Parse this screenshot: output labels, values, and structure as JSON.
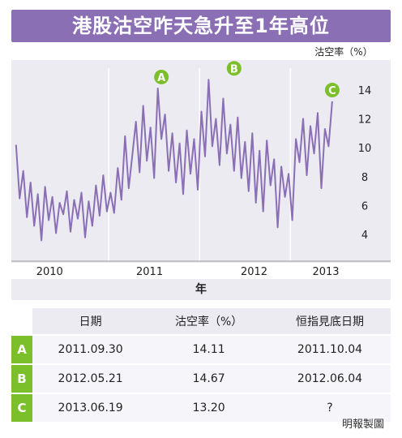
{
  "title": "港股沽空咋天急升至1年高位",
  "colors": {
    "accent": "#8a6fb5",
    "line": "#8a6fb5",
    "marker": "#7bbf2a",
    "panel": "#ecebf2"
  },
  "chart_data": {
    "type": "line",
    "title": "港股沽空咋天急升至1年高位",
    "ylabel": "沽空率（%）",
    "xlabel": "年",
    "xlim": [
      2010.0,
      2013.55
    ],
    "ylim": [
      2.5,
      15.5
    ],
    "yticks": [
      4,
      6,
      8,
      10,
      12,
      14
    ],
    "xticks": [
      "2010",
      "2011",
      "2012",
      "2013"
    ],
    "grid": "vertical",
    "series": [
      {
        "x": [
          2009.98,
          2010.02,
          2010.06,
          2010.1,
          2010.14,
          2010.18,
          2010.22,
          2010.26,
          2010.3,
          2010.34,
          2010.38,
          2010.42,
          2010.46,
          2010.5,
          2010.54,
          2010.58,
          2010.62,
          2010.66,
          2010.7,
          2010.74,
          2010.78,
          2010.82,
          2010.86,
          2010.9,
          2010.94,
          2010.98,
          2011.02,
          2011.06,
          2011.1,
          2011.14,
          2011.18,
          2011.22,
          2011.26,
          2011.3,
          2011.34,
          2011.38,
          2011.42,
          2011.46,
          2011.5,
          2011.54,
          2011.58,
          2011.62,
          2011.66,
          2011.7,
          2011.74,
          2011.78,
          2011.82,
          2011.86,
          2011.9,
          2011.94,
          2011.98,
          2012.02,
          2012.06,
          2012.1,
          2012.14,
          2012.18,
          2012.22,
          2012.26,
          2012.3,
          2012.34,
          2012.38,
          2012.42,
          2012.46,
          2012.5,
          2012.54,
          2012.58,
          2012.62,
          2012.66,
          2012.7,
          2012.74,
          2012.78,
          2012.82,
          2012.86,
          2012.9,
          2012.94,
          2012.98,
          2013.02,
          2013.06,
          2013.1,
          2013.14,
          2013.18,
          2013.22,
          2013.26,
          2013.3,
          2013.34,
          2013.38,
          2013.42,
          2013.46
        ],
        "y": [
          10.2,
          6.5,
          8.4,
          5.2,
          7.6,
          4.6,
          6.8,
          3.6,
          7.3,
          5.0,
          6.6,
          4.1,
          6.2,
          5.4,
          7.0,
          4.2,
          6.4,
          5.1,
          6.9,
          3.8,
          6.3,
          4.6,
          7.4,
          5.3,
          8.1,
          5.6,
          6.9,
          5.5,
          8.6,
          6.4,
          10.8,
          7.2,
          9.5,
          11.8,
          8.3,
          12.9,
          9.1,
          11.4,
          7.9,
          14.1,
          10.6,
          12.3,
          8.4,
          11.0,
          7.6,
          10.3,
          6.8,
          11.2,
          8.2,
          10.6,
          7.1,
          12.5,
          9.4,
          14.7,
          10.1,
          12.0,
          8.8,
          13.4,
          9.6,
          11.6,
          8.4,
          12.1,
          7.9,
          10.4,
          7.0,
          11.0,
          6.2,
          9.8,
          5.6,
          10.5,
          7.4,
          9.2,
          4.5,
          8.7,
          6.6,
          8.2,
          5.0,
          10.6,
          9.0,
          12.0,
          8.1,
          11.5,
          9.6,
          12.4,
          7.2,
          11.3,
          10.1,
          13.2
        ]
      }
    ],
    "annotations": [
      {
        "label": "A",
        "x": 2011.58,
        "y": 14.1
      },
      {
        "label": "B",
        "x": 2012.38,
        "y": 14.7
      },
      {
        "label": "C",
        "x": 2013.46,
        "y": 13.2
      }
    ]
  },
  "table": {
    "headers": [
      "日期",
      "沽空率（%）",
      "恒指見底日期"
    ],
    "rows": [
      {
        "label": "A",
        "date": "2011.09.30",
        "rate": "14.11",
        "bottom": "2011.10.04"
      },
      {
        "label": "B",
        "date": "2012.05.21",
        "rate": "14.67",
        "bottom": "2012.06.04"
      },
      {
        "label": "C",
        "date": "2013.06.19",
        "rate": "13.20",
        "bottom": "?"
      }
    ]
  },
  "credit": "明報製圖"
}
